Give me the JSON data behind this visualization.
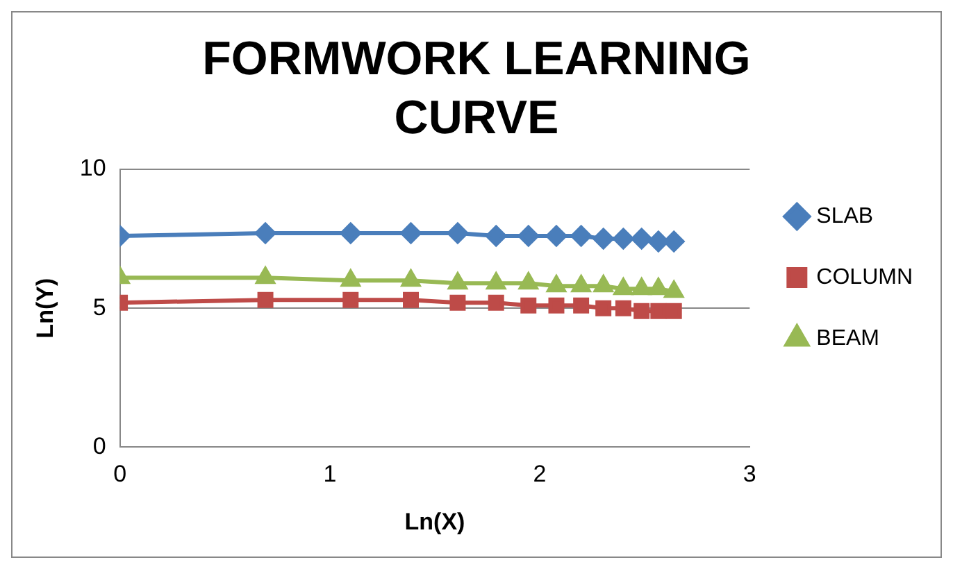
{
  "chart_data": {
    "type": "line",
    "title": "FORMWORK LEARNING CURVE",
    "xlabel": "Ln(X)",
    "ylabel": "Ln(Y)",
    "x": [
      0,
      0.693,
      1.099,
      1.386,
      1.609,
      1.792,
      1.946,
      2.079,
      2.197,
      2.303,
      2.398,
      2.485,
      2.565,
      2.639
    ],
    "series": [
      {
        "name": "SLAB",
        "color": "#4a7ebb",
        "marker": "diamond",
        "values": [
          7.6,
          7.7,
          7.7,
          7.7,
          7.7,
          7.6,
          7.6,
          7.6,
          7.6,
          7.5,
          7.5,
          7.5,
          7.4,
          7.4
        ]
      },
      {
        "name": "COLUMN",
        "color": "#be4b48",
        "marker": "square",
        "values": [
          5.2,
          5.3,
          5.3,
          5.3,
          5.2,
          5.2,
          5.1,
          5.1,
          5.1,
          5.0,
          5.0,
          4.9,
          4.9,
          4.9
        ]
      },
      {
        "name": "BEAM",
        "color": "#98b954",
        "marker": "triangle",
        "values": [
          6.1,
          6.1,
          6.0,
          6.0,
          5.9,
          5.9,
          5.9,
          5.8,
          5.8,
          5.8,
          5.7,
          5.7,
          5.7,
          5.6
        ]
      }
    ],
    "xlim": [
      0,
      3
    ],
    "xticks": [
      0,
      1,
      2,
      3
    ],
    "ylim": [
      0,
      10
    ],
    "yticks": [
      0,
      5,
      10
    ],
    "grid": "y",
    "legend": "right"
  }
}
